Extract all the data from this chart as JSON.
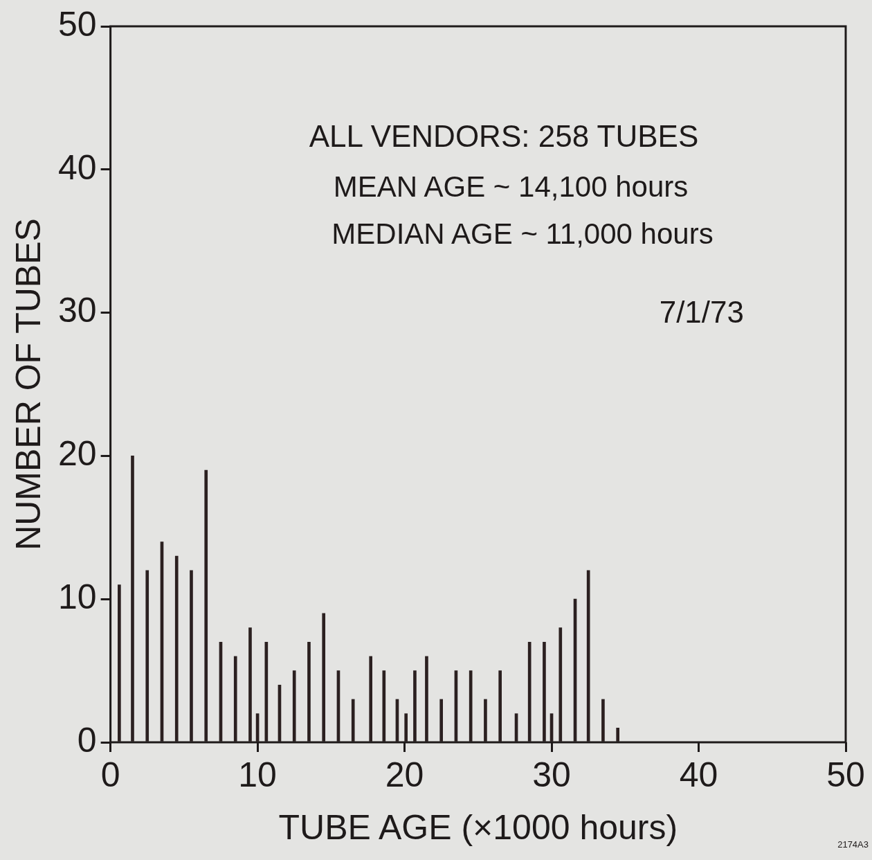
{
  "chart_data": {
    "type": "bar",
    "xlabel": "TUBE AGE (×1000 hours)",
    "ylabel": "NUMBER OF TUBES",
    "x": [
      0.6,
      1.5,
      2.5,
      3.5,
      4.5,
      5.5,
      6.5,
      7.5,
      8.5,
      9.5,
      10,
      10.6,
      11.5,
      12.5,
      13.5,
      14.5,
      15.5,
      16.5,
      17.7,
      18.6,
      19.5,
      20.1,
      20.7,
      21.5,
      22.5,
      23.5,
      24.5,
      25.5,
      26.5,
      27.6,
      28.5,
      29.5,
      30,
      30.6,
      31.6,
      32.5,
      33.5,
      34.5
    ],
    "values": [
      11,
      20,
      12,
      14,
      13,
      12,
      19,
      7,
      6,
      8,
      2,
      7,
      4,
      5,
      7,
      9,
      5,
      3,
      6,
      5,
      3,
      2,
      5,
      6,
      3,
      5,
      5,
      3,
      5,
      2,
      7,
      7,
      2,
      8,
      10,
      12,
      3,
      1
    ],
    "color": "#2b2020",
    "xlim": [
      0,
      50
    ],
    "xticks": [
      0,
      10,
      20,
      30,
      40,
      50
    ],
    "ylim": [
      0,
      50
    ],
    "yticks": [
      0,
      10,
      20,
      30,
      40,
      50
    ],
    "annotations": [
      "ALL VENDORS: 258 TUBES",
      "MEAN AGE ~ 14,100 hours",
      "MEDIAN AGE ~ 11,000 hours",
      "7/1/73",
      "2174A3"
    ]
  }
}
